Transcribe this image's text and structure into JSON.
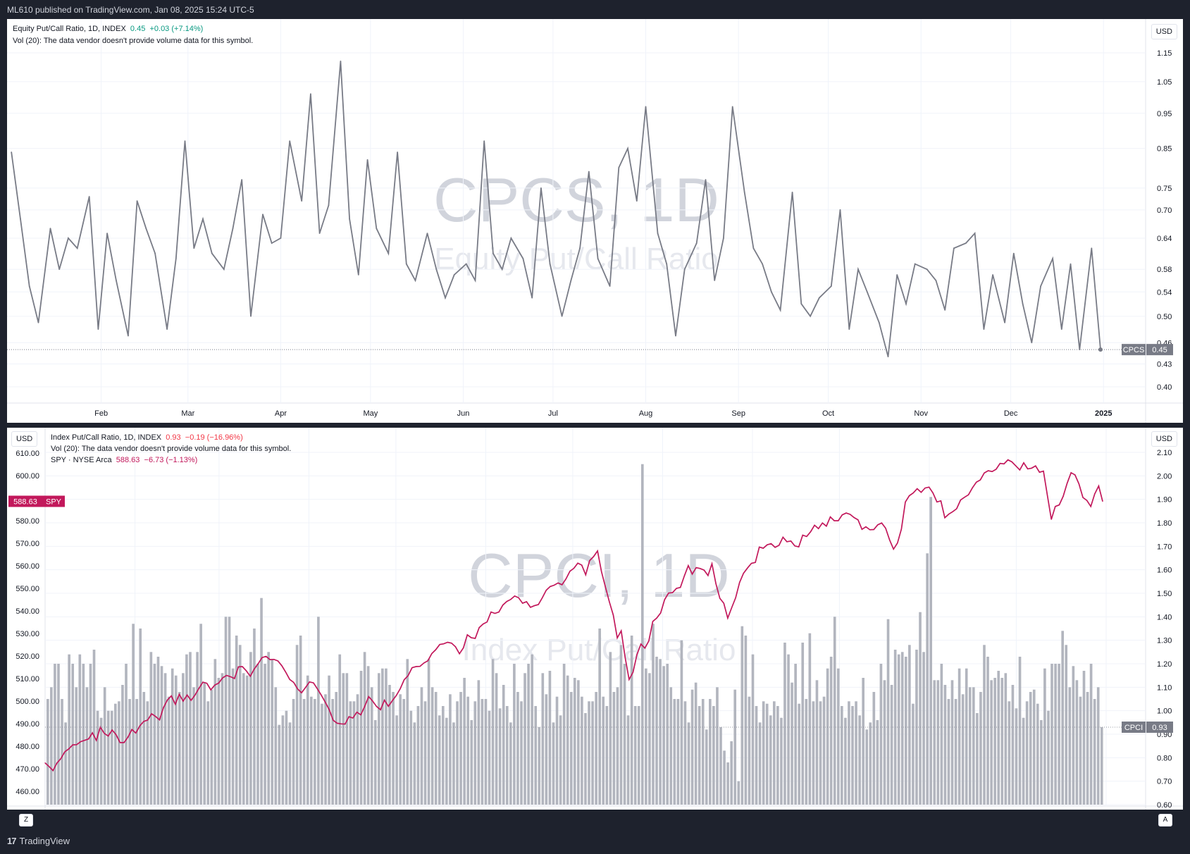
{
  "header": {
    "published": "ML610 published on TradingView.com, Jan 08, 2025 15:24 UTC-5"
  },
  "footer": {
    "brand": "TradingView"
  },
  "currency_label": "USD",
  "colors": {
    "cpcs_line": "#787b86",
    "spy_line": "#c2185b",
    "cpci_bar": "#b2b5be",
    "grid": "#f0f3fa",
    "watermark": "#d1d4dc"
  },
  "panel1": {
    "legend_line1": "Equity Put/Call Ratio, 1D, INDEX",
    "legend_val": "0.45",
    "legend_chg": "+0.03 (+7.14%)",
    "legend_line2": "Vol (20): The data vendor doesn't provide volume data for this symbol.",
    "watermark_symbol": "CPCS, 1D",
    "watermark_name": "Equity Put/Call Ratio",
    "price_tag_symbol": "CPCS",
    "price_tag_value": "0.45",
    "hidden_tick": "0.46"
  },
  "panel2": {
    "legend_line1": "Index Put/Call Ratio, 1D, INDEX",
    "legend_val": "0.93",
    "legend_chg": "−0.19 (−16.96%)",
    "legend_line2": "Vol (20): The data vendor doesn't provide volume data for this symbol.",
    "legend_line3": "SPY · NYSE Arca",
    "spy_val": "588.63",
    "spy_chg": "−6.73 (−1.13%)",
    "watermark_symbol": "CPCI, 1D",
    "watermark_name": "Index Put/Call Ratio",
    "cpci_tag_symbol": "CPCI",
    "cpci_tag_value": "0.93",
    "spy_tag_symbol": "SPY",
    "spy_tag_value": "588.63",
    "hidden_tick": "590.00",
    "left_corner": "Z",
    "right_corner": "A"
  },
  "chart_data": [
    {
      "type": "line",
      "name": "Equity Put/Call Ratio (CPCS)",
      "x_tick_labels": [
        "Feb",
        "Mar",
        "Apr",
        "May",
        "Jun",
        "Jul",
        "Aug",
        "Sep",
        "Oct",
        "Nov",
        "Dec",
        "2025"
      ],
      "y_ticks": [
        0.4,
        0.43,
        0.46,
        0.5,
        0.54,
        0.58,
        0.64,
        0.7,
        0.75,
        0.85,
        0.95,
        1.05,
        1.15
      ],
      "y_tick_labels": [
        "0.40",
        "0.43",
        "0.46",
        "0.50",
        "0.54",
        "0.58",
        "0.64",
        "0.70",
        "0.75",
        "0.85",
        "0.95",
        "1.05",
        "1.15"
      ],
      "y_scale": "log",
      "ylim": [
        0.38,
        1.2
      ],
      "x_range_day": [
        0,
        365
      ],
      "series": [
        {
          "name": "CPCS",
          "x_day": [
            1,
            4,
            7,
            10,
            14,
            17,
            20,
            23,
            27,
            30,
            33,
            36,
            40,
            43,
            46,
            49,
            53,
            56,
            59,
            62,
            65,
            68,
            72,
            75,
            78,
            81,
            85,
            88,
            91,
            94,
            98,
            101,
            104,
            107,
            111,
            114,
            117,
            120,
            123,
            127,
            130,
            133,
            136,
            140,
            143,
            146,
            149,
            153,
            156,
            159,
            162,
            165,
            168,
            172,
            175,
            178,
            181,
            185,
            188,
            191,
            194,
            197,
            201,
            204,
            207,
            210,
            213,
            217,
            220,
            223,
            226,
            230,
            233,
            236,
            239,
            242,
            246,
            249,
            252,
            255,
            258,
            262,
            265,
            268,
            271,
            275,
            278,
            281,
            284,
            287,
            291,
            294,
            297,
            300,
            303,
            307,
            310,
            313,
            316,
            320,
            323,
            326,
            329,
            333,
            336,
            339,
            342,
            345,
            349,
            352,
            355,
            358,
            362,
            365
          ],
          "values": [
            0.84,
            0.68,
            0.55,
            0.49,
            0.66,
            0.58,
            0.64,
            0.62,
            0.73,
            0.48,
            0.65,
            0.56,
            0.47,
            0.72,
            0.66,
            0.61,
            0.48,
            0.6,
            0.87,
            0.62,
            0.68,
            0.61,
            0.58,
            0.66,
            0.77,
            0.5,
            0.69,
            0.63,
            0.64,
            0.87,
            0.72,
            1.01,
            0.65,
            0.71,
            1.12,
            0.68,
            0.57,
            0.82,
            0.66,
            0.61,
            0.84,
            0.59,
            0.56,
            0.65,
            0.58,
            0.53,
            0.57,
            0.59,
            0.56,
            0.87,
            0.61,
            0.58,
            0.64,
            0.6,
            0.53,
            0.75,
            0.59,
            0.5,
            0.56,
            0.62,
            0.79,
            0.6,
            0.55,
            0.8,
            0.85,
            0.72,
            0.97,
            0.65,
            0.59,
            0.47,
            0.58,
            0.63,
            0.77,
            0.56,
            0.64,
            0.97,
            0.74,
            0.62,
            0.59,
            0.54,
            0.51,
            0.74,
            0.52,
            0.5,
            0.53,
            0.55,
            0.7,
            0.48,
            0.58,
            0.54,
            0.49,
            0.44,
            0.57,
            0.52,
            0.59,
            0.58,
            0.56,
            0.51,
            0.62,
            0.63,
            0.65,
            0.48,
            0.57,
            0.49,
            0.61,
            0.52,
            0.46,
            0.55,
            0.6,
            0.48,
            0.59,
            0.45,
            0.62,
            0.45
          ]
        }
      ]
    },
    {
      "type": "bar",
      "name": "Index Put/Call Ratio (CPCI) with SPY overlay",
      "x_tick_labels": [
        "Feb",
        "Mar",
        "Apr",
        "May",
        "Jun",
        "Jul",
        "Aug",
        "Sep",
        "Oct",
        "Nov",
        "Dec",
        "2025"
      ],
      "y_right_ticks": [
        0.6,
        0.7,
        0.8,
        0.9,
        1.0,
        1.1,
        1.2,
        1.3,
        1.4,
        1.5,
        1.6,
        1.7,
        1.8,
        1.9,
        2.0,
        2.1
      ],
      "y_right_tick_labels": [
        "0.60",
        "0.70",
        "0.80",
        "0.90",
        "1.00",
        "1.10",
        "1.20",
        "1.30",
        "1.40",
        "1.50",
        "1.60",
        "1.70",
        "1.80",
        "1.90",
        "2.00",
        "2.10"
      ],
      "y_left_ticks": [
        460,
        470,
        480,
        490,
        500,
        510,
        520,
        530,
        540,
        550,
        560,
        570,
        580,
        590,
        600,
        610
      ],
      "y_left_tick_labels": [
        "460.00",
        "470.00",
        "480.00",
        "490.00",
        "500.00",
        "510.00",
        "520.00",
        "530.00",
        "540.00",
        "550.00",
        "560.00",
        "570.00",
        "580.00",
        "590.00",
        "600.00",
        "610.00"
      ],
      "ylim_right": [
        0.6,
        2.1
      ],
      "ylim_left": [
        455,
        612
      ],
      "series": [
        {
          "name": "CPCI",
          "values": [
            1.05,
            1.1,
            1.2,
            1.2,
            1.05,
            0.95,
            1.24,
            1.2,
            1.1,
            1.24,
            1.2,
            1.1,
            1.2,
            1.26,
            1.0,
            0.97,
            1.1,
            1.0,
            1.0,
            1.03,
            1.04,
            1.11,
            1.2,
            1.05,
            1.37,
            1.05,
            1.35,
            1.08,
            1.04,
            1.25,
            1.2,
            1.23,
            1.19,
            1.16,
            1.06,
            1.18,
            1.15,
            1.08,
            1.16,
            1.24,
            1.25,
            1.1,
            1.25,
            1.37,
            1.12,
            1.04,
            1.09,
            1.22,
            1.14,
            1.16,
            1.4,
            1.4,
            1.18,
            1.32,
            1.28,
            1.16,
            1.15,
            1.25,
            1.35,
            1.2,
            1.48,
            1.2,
            1.25,
            1.22,
            1.1,
            0.94,
            0.98,
            1.0,
            0.95,
            1.05,
            1.28,
            1.32,
            1.05,
            1.15,
            1.06,
            1.05,
            1.4,
            1.03,
            1.07,
            1.15,
            1.05,
            1.08,
            1.24,
            1.16,
            1.16,
            1.04,
            1.04,
            1.07,
            1.17,
            1.25,
            1.19,
            1.1,
            0.96,
            1.16,
            1.18,
            1.18,
            1.11,
            1.08,
            0.98,
            1.07,
            1.05,
            1.22,
            1.0,
            0.95,
            1.02,
            1.1,
            1.04,
            1.22,
            1.1,
            1.08,
            0.98,
            1.02,
            0.97,
            1.07,
            0.95,
            1.04,
            1.08,
            1.14,
            1.06,
            0.96,
            1.04,
            1.13,
            1.05,
            1.05,
            1.0,
            1.22,
            1.16,
            1.01,
            1.11,
            1.02,
            0.95,
            1.2,
            1.08,
            1.04,
            1.16,
            1.2,
            1.24,
            1.02,
            0.93,
            1.16,
            1.07,
            1.17,
            0.95,
            1.06,
            0.98,
            1.2,
            1.15,
            1.08,
            1.14,
            1.13,
            1.06,
            0.99,
            1.04,
            1.04,
            1.08,
            1.35,
            1.06,
            1.02,
            1.25,
            1.08,
            1.1,
            1.28,
            1.2,
            0.98,
            1.32,
            1.02,
            1.02,
            2.05,
            1.18,
            1.16,
            1.37,
            1.23,
            1.22,
            1.19,
            1.2,
            1.1,
            1.05,
            1.05,
            1.3,
            1.04,
            0.95,
            1.09,
            1.12,
            1.02,
            1.05,
            0.92,
            1.05,
            1.02,
            1.1,
            0.93,
            0.83,
            0.78,
            0.87,
            1.09,
            0.7,
            1.36,
            1.32,
            1.06,
            1.24,
            1.02,
            0.95,
            1.04,
            1.03,
            0.98,
            1.04,
            1.02,
            0.97,
            1.29,
            1.24,
            1.12,
            1.2,
            1.03,
            1.29,
            1.05,
            1.33,
            1.04,
            1.13,
            1.04,
            1.06,
            1.18,
            1.23,
            1.4,
            1.18,
            1.02,
            0.97,
            1.04,
            1.02,
            1.04,
            0.98,
            1.14,
            0.92,
            0.95,
            1.08,
            0.96,
            1.2,
            1.13,
            1.39,
            1.11,
            1.26,
            1.24,
            1.25,
            1.23,
            1.28,
            1.03,
            1.26,
            1.42,
            1.25,
            1.67,
            1.91,
            1.13,
            1.13,
            1.2,
            1.11,
            1.05,
            1.13,
            1.05,
            1.18,
            1.07,
            1.18,
            1.1,
            1.1,
            0.99,
            1.08,
            1.28,
            1.23,
            1.13,
            1.14,
            1.17,
            1.14,
            1.16,
            1.04,
            1.11,
            1.01,
            1.23,
            0.97,
            1.04,
            1.08,
            1.09,
            1.03,
            0.96,
            1.18,
            1.0,
            1.2,
            1.2,
            1.2,
            1.34,
            1.28,
            1.1,
            1.19,
            1.13,
            1.06,
            1.17,
            1.08,
            1.2,
            1.05,
            1.1,
            0.93
          ]
        },
        {
          "name": "SPY",
          "values": [
            472.6,
            471,
            469.2,
            472.5,
            474.5,
            477.5,
            478.8,
            480.6,
            480.7,
            482,
            482.6,
            483.2,
            485.9,
            482.6,
            488.5,
            485.7,
            484.5,
            487.2,
            485.1,
            481.6,
            481.6,
            484,
            487.4,
            485.8,
            489,
            491,
            491.6,
            494.4,
            493.2,
            491.7,
            497.1,
            500.5,
            502.3,
            498.6,
            503,
            500,
            502.7,
            500.3,
            502.7,
            505.7,
            508.4,
            507.9,
            505,
            507.1,
            508,
            510.3,
            511.4,
            510.8,
            510,
            515.2,
            515.3,
            513.4,
            511,
            514.2,
            516.6,
            519.3,
            519.8,
            518.4,
            518.5,
            517.8,
            515.7,
            512.8,
            509.6,
            508.3,
            505.4,
            503.7,
            506,
            508.5,
            508.1,
            505.4,
            502.6,
            499.5,
            496.2,
            491.5,
            490.2,
            489.9,
            489.8,
            493.1,
            492.5,
            495.1,
            493.9,
            497.7,
            502,
            500,
            497.6,
            496.2,
            500.4,
            497.7,
            500.2,
            502.5,
            505.5,
            509.5,
            511.3,
            514.8,
            515.3,
            515.4,
            516.9,
            517.9,
            521.1,
            522.8,
            525.1,
            525.4,
            526.1,
            525.7,
            524.1,
            521,
            523.6,
            529.4,
            528.1,
            527.8,
            532.6,
            534.2,
            535.1,
            539.5,
            538.9,
            539.5,
            542.6,
            544.2,
            545.1,
            546.6,
            545.8,
            543.4,
            544.1,
            541.6,
            542.3,
            542.8,
            545.8,
            549.2,
            550.8,
            551.4,
            552.4,
            551.6,
            554.2,
            557.6,
            558.9,
            561.2,
            560.3,
            556,
            562.3,
            564.1,
            566.6,
            557.4,
            550.6,
            544,
            538.1,
            528,
            531.2,
            519.3,
            509.6,
            512.8,
            520.7,
            525.3,
            523.5,
            526.7,
            535.3,
            536.8,
            539.1,
            545,
            547.9,
            548.1,
            550,
            550.4,
            555.5,
            560.1,
            556.3,
            559.2,
            558.8,
            558.1,
            555.7,
            560.9,
            552.1,
            545.6,
            543.4,
            536.8,
            541.4,
            545.8,
            552.6,
            556.7,
            559,
            561.1,
            561.5,
            568.3,
            567.8,
            569.3,
            569.8,
            568.2,
            569.1,
            572.7,
            570.7,
            571,
            568.8,
            568.4,
            573.6,
            573,
            575.1,
            578,
            576.5,
            579,
            577.6,
            581.7,
            580,
            580,
            582.6,
            583.4,
            582.8,
            581.4,
            580.4,
            576.2,
            577.3,
            576,
            576.1,
            578.2,
            579,
            576.7,
            571.5,
            567.4,
            570.1,
            576.3,
            588.3,
            591.1,
            592.3,
            594.2,
            592.6,
            594.5,
            594.9,
            592.3,
            588.3,
            588.8,
            581.3,
            582.9,
            584,
            585.3,
            589.2,
            590.4,
            591.5,
            594.6,
            597.1,
            598.1,
            601.2,
            602.2,
            601.8,
            602.8,
            605.4,
            605.2,
            607,
            606.1,
            604.3,
            602.5,
            605.7,
            603,
            603.3,
            604.3,
            601.5,
            602,
            591.2,
            580.6,
            586.3,
            587,
            590.8,
            596.6,
            601.3,
            600.3,
            596.3,
            590.3,
            589,
            586.3,
            591.9,
            595.4,
            588.6
          ]
        }
      ]
    }
  ]
}
